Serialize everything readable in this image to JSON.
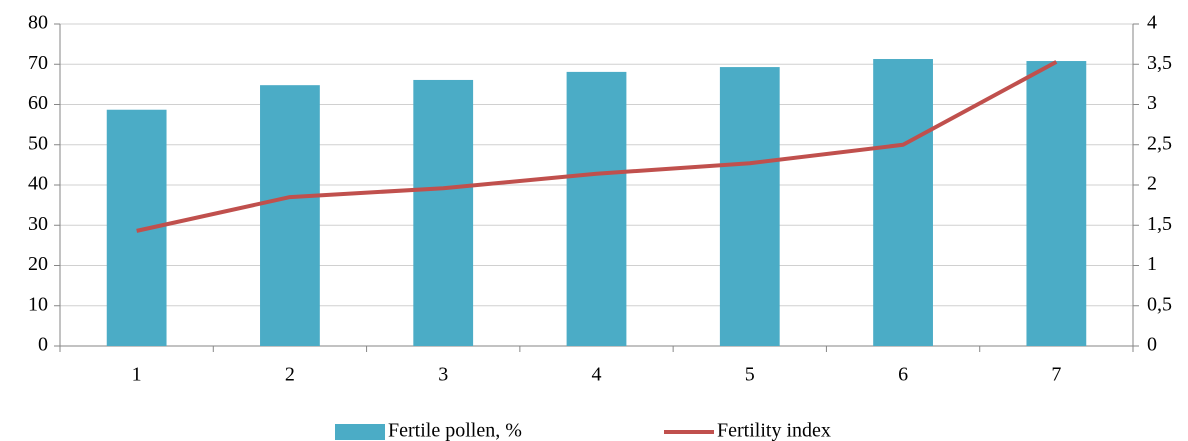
{
  "chart_data": {
    "type": "bar-line",
    "categories": [
      "1",
      "2",
      "3",
      "4",
      "5",
      "6",
      "7"
    ],
    "series": [
      {
        "name": "Fertile pollen, %",
        "type": "bar",
        "color": "#4bacc6",
        "values": [
          58.7,
          64.8,
          66.1,
          68.1,
          69.3,
          71.3,
          70.8
        ]
      },
      {
        "name": "Fertility index",
        "type": "line",
        "axis": "y2",
        "color": "#c0504d",
        "values": [
          1.43,
          1.85,
          1.96,
          2.14,
          2.27,
          2.5,
          3.53
        ]
      }
    ],
    "ylim": [
      0,
      80
    ],
    "yticks": [
      0,
      10,
      20,
      30,
      40,
      50,
      60,
      70,
      80
    ],
    "y2lim": [
      0,
      4
    ],
    "y2ticks": [
      0,
      {
        "value": 0.5,
        "label": "0,5"
      },
      1,
      {
        "value": 1.5,
        "label": "1,5"
      },
      2,
      {
        "value": 2.5,
        "label": "2,5"
      },
      3,
      {
        "value": 3.5,
        "label": "3,5"
      },
      4
    ],
    "grid": true,
    "legend": "bottom"
  }
}
